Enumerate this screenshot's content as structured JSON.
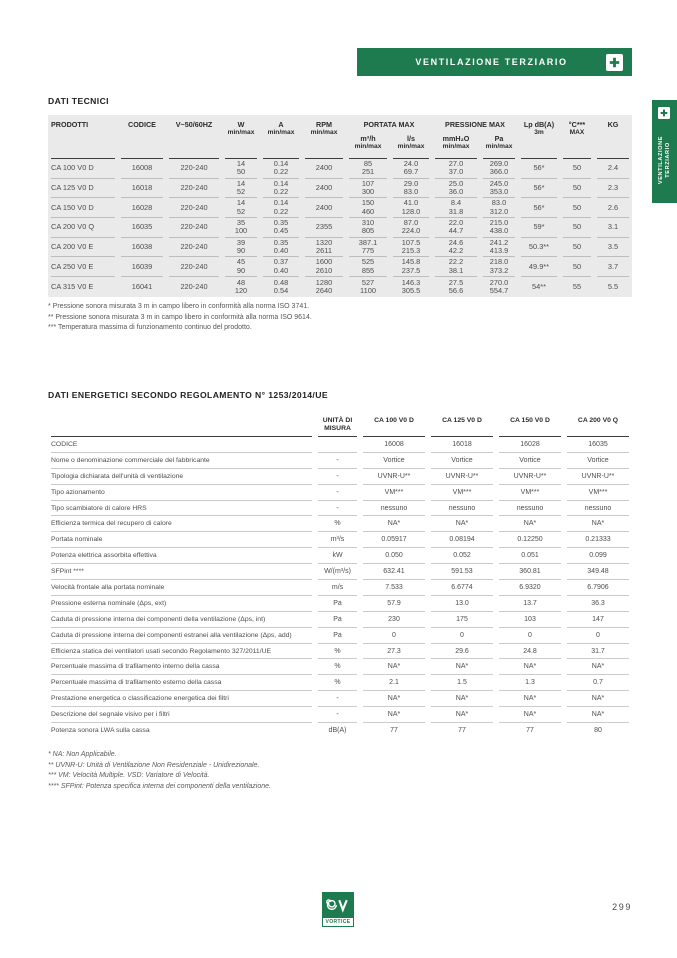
{
  "colors": {
    "brand_green": "#1E7B4F",
    "table_bg": "#EAEAEA"
  },
  "page": {
    "number": "299"
  },
  "banner": {
    "label": "VENTILAZIONE TERZIARIO"
  },
  "side_tab": {
    "line1": "VENTILAZIONE",
    "line2": "TERZIARIO"
  },
  "logo": {
    "brand": "VORTICE"
  },
  "dati_tecnici": {
    "title": "DATI TECNICI",
    "header": {
      "prodotti": "PRODOTTI",
      "codice": "CODICE",
      "voltage": "V~50/60HZ",
      "w": "W",
      "a": "A",
      "rpm": "RPM",
      "minmax": "min/max",
      "portata": "PORTATA MAX",
      "m3h": "m³/h",
      "ls": "l/s",
      "pressione": "PRESSIONE MAX",
      "mmh2o": "mmH₂O",
      "pa": "Pa",
      "lp_line1": "Lp dB(A)",
      "lp_line2": "3m",
      "temp_line1": "°C***",
      "temp_line2": "MAX",
      "kg": "KG"
    },
    "rows": [
      {
        "prodotto": "CA 100 V0 D",
        "codice": "16008",
        "voltage": "220-240",
        "w": [
          "14",
          "50"
        ],
        "a": [
          "0.14",
          "0.22"
        ],
        "rpm": [
          "2400"
        ],
        "m3h": [
          "85",
          "251"
        ],
        "ls": [
          "24.0",
          "69.7"
        ],
        "mmh2o": [
          "27.0",
          "37.0"
        ],
        "pa": [
          "269.0",
          "366.0"
        ],
        "lp": "56*",
        "tmax": "50",
        "kg": "2.4"
      },
      {
        "prodotto": "CA 125 V0 D",
        "codice": "16018",
        "voltage": "220-240",
        "w": [
          "14",
          "52"
        ],
        "a": [
          "0.14",
          "0.22"
        ],
        "rpm": [
          "2400"
        ],
        "m3h": [
          "107",
          "300"
        ],
        "ls": [
          "29.0",
          "83.0"
        ],
        "mmh2o": [
          "25.0",
          "36.0"
        ],
        "pa": [
          "245.0",
          "353.0"
        ],
        "lp": "56*",
        "tmax": "50",
        "kg": "2.3"
      },
      {
        "prodotto": "CA 150 V0 D",
        "codice": "16028",
        "voltage": "220-240",
        "w": [
          "14",
          "52"
        ],
        "a": [
          "0.14",
          "0.22"
        ],
        "rpm": [
          "2400"
        ],
        "m3h": [
          "150",
          "460"
        ],
        "ls": [
          "41.0",
          "128.0"
        ],
        "mmh2o": [
          "8.4",
          "31.8"
        ],
        "pa": [
          "83.0",
          "312.0"
        ],
        "lp": "56*",
        "tmax": "50",
        "kg": "2.6"
      },
      {
        "prodotto": "CA 200 V0 Q",
        "codice": "16035",
        "voltage": "220-240",
        "w": [
          "35",
          "100"
        ],
        "a": [
          "0.35",
          "0.45"
        ],
        "rpm": [
          "2355"
        ],
        "m3h": [
          "310",
          "805"
        ],
        "ls": [
          "87.0",
          "224.0"
        ],
        "mmh2o": [
          "22.0",
          "44.7"
        ],
        "pa": [
          "215.0",
          "438.0"
        ],
        "lp": "59*",
        "tmax": "50",
        "kg": "3.1"
      },
      {
        "prodotto": "CA 200 V0 E",
        "codice": "16038",
        "voltage": "220-240",
        "w": [
          "39",
          "90"
        ],
        "a": [
          "0.35",
          "0.40"
        ],
        "rpm": [
          "1320",
          "2611"
        ],
        "m3h": [
          "387.1",
          "775"
        ],
        "ls": [
          "107.5",
          "215.3"
        ],
        "mmh2o": [
          "24.6",
          "42.2"
        ],
        "pa": [
          "241.2",
          "413.9"
        ],
        "lp": "50.3**",
        "tmax": "50",
        "kg": "3.5"
      },
      {
        "prodotto": "CA 250 V0 E",
        "codice": "16039",
        "voltage": "220-240",
        "w": [
          "45",
          "90"
        ],
        "a": [
          "0.37",
          "0.40"
        ],
        "rpm": [
          "1600",
          "2610"
        ],
        "m3h": [
          "525",
          "855"
        ],
        "ls": [
          "145.8",
          "237.5"
        ],
        "mmh2o": [
          "22.2",
          "38.1"
        ],
        "pa": [
          "218.0",
          "373.2"
        ],
        "lp": "49.9**",
        "tmax": "50",
        "kg": "3.7"
      },
      {
        "prodotto": "CA 315 V0 E",
        "codice": "16041",
        "voltage": "220-240",
        "w": [
          "48",
          "120"
        ],
        "a": [
          "0.48",
          "0.54"
        ],
        "rpm": [
          "1280",
          "2640"
        ],
        "m3h": [
          "527",
          "1100"
        ],
        "ls": [
          "146.3",
          "305.5"
        ],
        "mmh2o": [
          "27.5",
          "56.6"
        ],
        "pa": [
          "270.0",
          "554.7"
        ],
        "lp": "54**",
        "tmax": "55",
        "kg": "5.5"
      }
    ],
    "footnotes": [
      "* Pressione sonora misurata 3 m in campo libero in conformità alla norma ISO 3741.",
      "** Pressione sonora misurata 3 m in campo libero in conformità alla norma ISO 9614.",
      "*** Temperatura massima di funzionamento continuo del prodotto."
    ]
  },
  "dati_energetici": {
    "title": "DATI ENERGETICI SECONDO REGOLAMENTO N° 1253/2014/UE",
    "header": {
      "unit_line1": "UNITÀ DI",
      "unit_line2": "MISURA",
      "models": [
        "CA 100 V0 D",
        "CA 125 V0 D",
        "CA 150 V0 D",
        "CA 200 V0 Q"
      ]
    },
    "rows": [
      {
        "label": "CODICE",
        "unit": "",
        "values": [
          "16008",
          "16018",
          "16028",
          "16035"
        ]
      },
      {
        "label": "Nome o denominazione commerciale del fabbricante",
        "unit": "-",
        "values": [
          "Vortice",
          "Vortice",
          "Vortice",
          "Vortice"
        ]
      },
      {
        "label": "Tipologia dichiarata dell'unità di ventilazione",
        "unit": "-",
        "values": [
          "UVNR-U**",
          "UVNR-U**",
          "UVNR-U**",
          "UVNR-U**"
        ]
      },
      {
        "label": "Tipo azionamento",
        "unit": "-",
        "values": [
          "VM***",
          "VM***",
          "VM***",
          "VM***"
        ]
      },
      {
        "label": "Tipo scambiatore di calore HRS",
        "unit": "-",
        "values": [
          "nessuno",
          "nessuno",
          "nessuno",
          "nessuno"
        ]
      },
      {
        "label": "Efficienza termica del recupero di calore",
        "unit": "%",
        "values": [
          "NA*",
          "NA*",
          "NA*",
          "NA*"
        ]
      },
      {
        "label": "Portata nominale",
        "unit": "m³/s",
        "values": [
          "0.05917",
          "0.08194",
          "0.12250",
          "0.21333"
        ]
      },
      {
        "label": "Potenza elettrica assorbita effettiva",
        "unit": "kW",
        "values": [
          "0.050",
          "0.052",
          "0.051",
          "0.099"
        ]
      },
      {
        "label": "SFPint ****",
        "unit": "W/(m³/s)",
        "values": [
          "632.41",
          "591.53",
          "360.81",
          "349.48"
        ]
      },
      {
        "label": "Velocità frontale alla portata nominale",
        "unit": "m/s",
        "values": [
          "7.533",
          "6.6774",
          "6.9320",
          "6.7906"
        ]
      },
      {
        "label": "Pressione esterna nominale (Δps, ext)",
        "unit": "Pa",
        "values": [
          "57.9",
          "13.0",
          "13.7",
          "36.3"
        ]
      },
      {
        "label": "Caduta di pressione interna dei componenti della ventilazione (Δps, int)",
        "unit": "Pa",
        "values": [
          "230",
          "175",
          "103",
          "147"
        ]
      },
      {
        "label": "Caduta di pressione interna dei componenti estranei alla ventilazione (Δps, add)",
        "unit": "Pa",
        "values": [
          "0",
          "0",
          "0",
          "0"
        ]
      },
      {
        "label": "Efficienza statica dei ventilatori usati secondo Regolamento 327/2011/UE",
        "unit": "%",
        "values": [
          "27.3",
          "29.6",
          "24.8",
          "31.7"
        ]
      },
      {
        "label": "Percentuale massima di trafilamento interno della cassa",
        "unit": "%",
        "values": [
          "NA*",
          "NA*",
          "NA*",
          "NA*"
        ]
      },
      {
        "label": "Percentuale massima di trafilamento esterno della cassa",
        "unit": "%",
        "values": [
          "2.1",
          "1.5",
          "1.3",
          "0.7"
        ]
      },
      {
        "label": "Prestazione energetica o classificazione energetica dei filtri",
        "unit": "-",
        "values": [
          "NA*",
          "NA*",
          "NA*",
          "NA*"
        ]
      },
      {
        "label": "Descrizione del segnale visivo per i filtri",
        "unit": "-",
        "values": [
          "NA*",
          "NA*",
          "NA*",
          "NA*"
        ]
      },
      {
        "label": "Potenza sonora LWA sulla cassa",
        "unit": "dB(A)",
        "values": [
          "77",
          "77",
          "77",
          "80"
        ]
      }
    ],
    "footnotes": [
      "* NA: Non Applicabile.",
      "** UVNR-U: Unità di Ventilazione Non Residenziale - Unidirezionale.",
      "*** VM: Velocità Multiple. VSD: Variatore di Velocità.",
      "**** SFPint: Potenza specifica interna dei componenti della ventilazione."
    ]
  }
}
